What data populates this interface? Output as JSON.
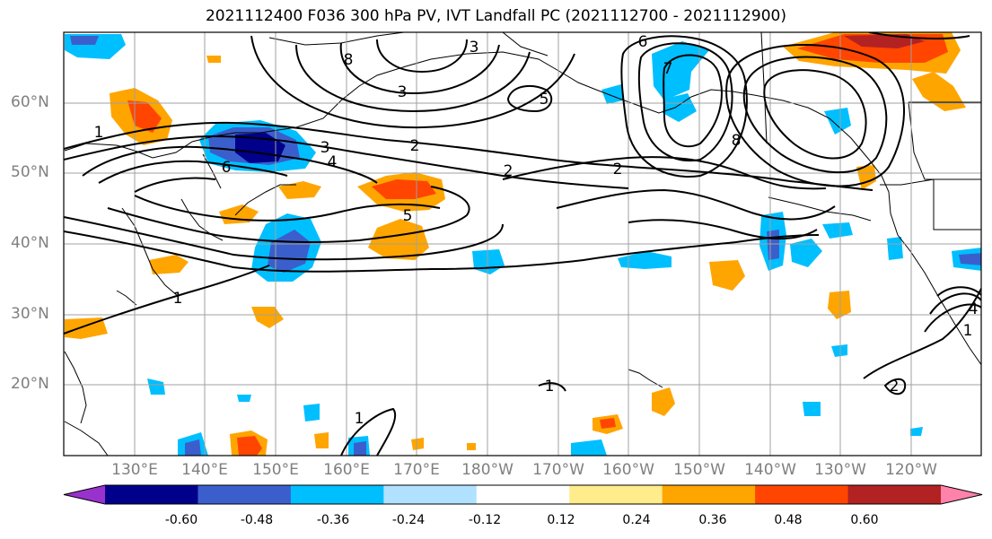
{
  "title": "2021112400 F036 300 hPa PV, IVT Landfall PC (2021112700 - 2021112900)",
  "lat_labels": [
    "60°N",
    "50°N",
    "40°N",
    "30°N",
    "20°N"
  ],
  "lon_labels": [
    "130°E",
    "140°E",
    "150°E",
    "160°E",
    "170°E",
    "180°W",
    "170°W",
    "160°W",
    "150°W",
    "140°W",
    "130°W",
    "120°W"
  ],
  "colorbar": {
    "ticks": [
      "-0.60",
      "-0.48",
      "-0.36",
      "-0.24",
      "-0.12",
      "0.12",
      "0.24",
      "0.36",
      "0.48",
      "0.60"
    ],
    "colors": [
      "#9932cc",
      "#00008b",
      "#3a5fcd",
      "#00bfff",
      "#b0e2ff",
      "#ffffff",
      "#ffec8b",
      "#ffa500",
      "#ff4500",
      "#b22222",
      "#ff82ab"
    ]
  },
  "contour_labels": [
    "1",
    "1",
    "1",
    "1",
    "1",
    "2",
    "2",
    "2",
    "2",
    "3",
    "3",
    "3",
    "4",
    "4",
    "5",
    "5",
    "6",
    "6",
    "7",
    "8",
    "8"
  ]
}
